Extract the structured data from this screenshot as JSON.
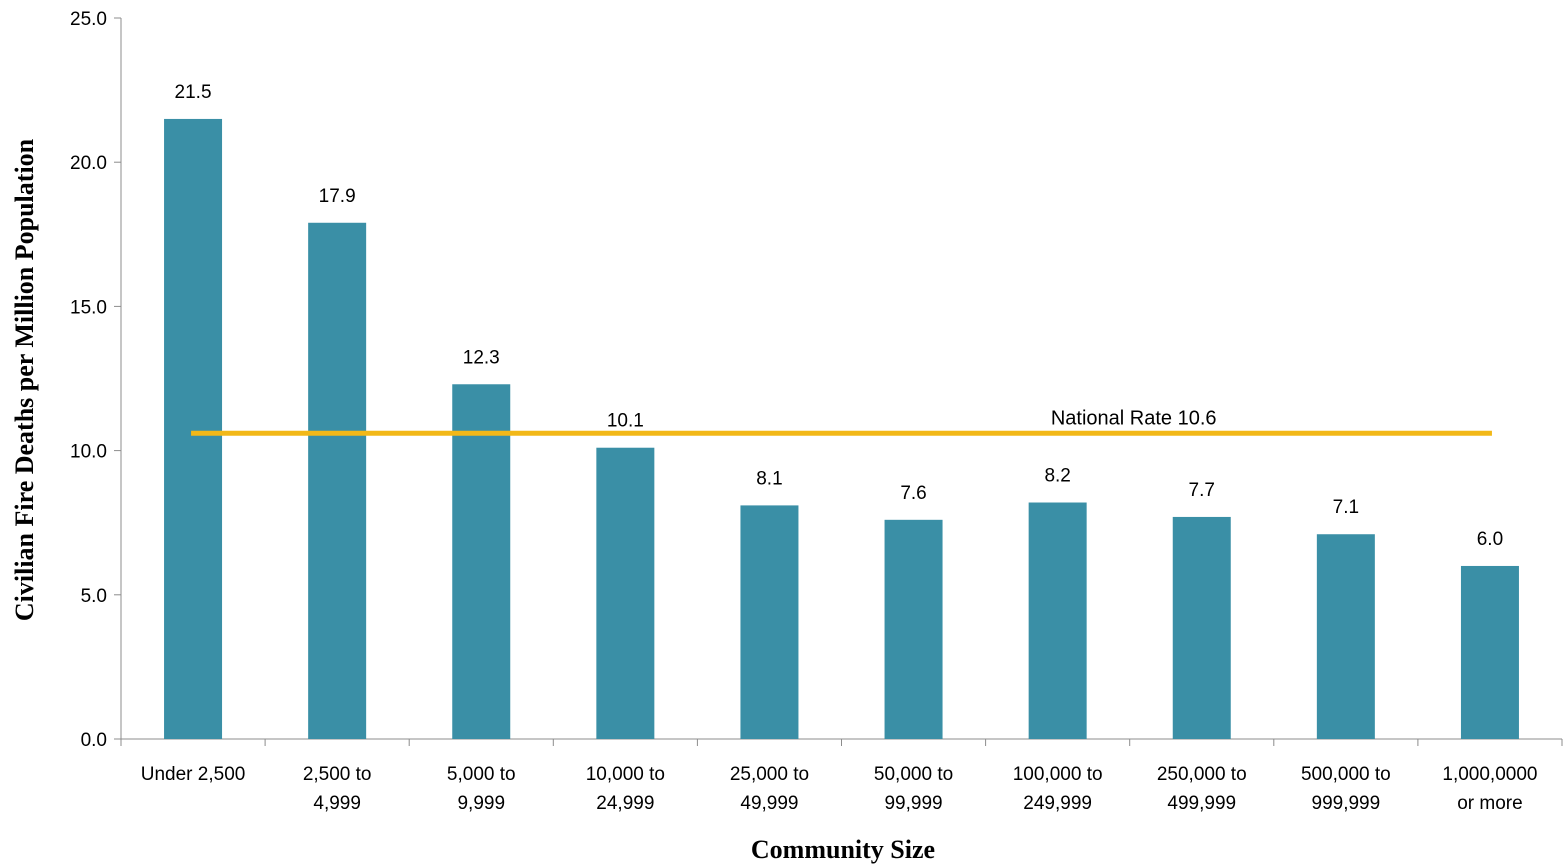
{
  "chart_data": {
    "type": "bar",
    "title": "",
    "xlabel": "Community Size",
    "ylabel": "Civilian Fire Deaths per Million Population",
    "ylim": [
      0,
      25
    ],
    "yticks": [
      "0.0",
      "5.0",
      "10.0",
      "15.0",
      "20.0",
      "25.0"
    ],
    "ytick_values": [
      0,
      5,
      10,
      15,
      20,
      25
    ],
    "categories": [
      [
        "Under 2,500"
      ],
      [
        "2,500 to",
        "4,999"
      ],
      [
        "5,000 to",
        "9,999"
      ],
      [
        "10,000 to",
        "24,999"
      ],
      [
        "25,000 to",
        "49,999"
      ],
      [
        "50,000 to",
        "99,999"
      ],
      [
        "100,000 to",
        "249,999"
      ],
      [
        "250,000 to",
        "499,999"
      ],
      [
        "500,000 to",
        "999,999"
      ],
      [
        "1,000,0000",
        "or more"
      ]
    ],
    "values": [
      21.5,
      17.9,
      12.3,
      10.1,
      8.1,
      7.6,
      8.2,
      7.7,
      7.1,
      6.0
    ],
    "data_labels": [
      "21.5",
      "17.9",
      "12.3",
      "10.1",
      "8.1",
      "7.6",
      "8.2",
      "7.7",
      "7.1",
      "6.0"
    ],
    "reference_line": {
      "value": 10.6,
      "label": "National Rate 10.6"
    },
    "grid": false,
    "colors": {
      "bar": "#3A8FA6",
      "reference_line": "#F2B818",
      "axis": "#8C8C8C"
    }
  }
}
